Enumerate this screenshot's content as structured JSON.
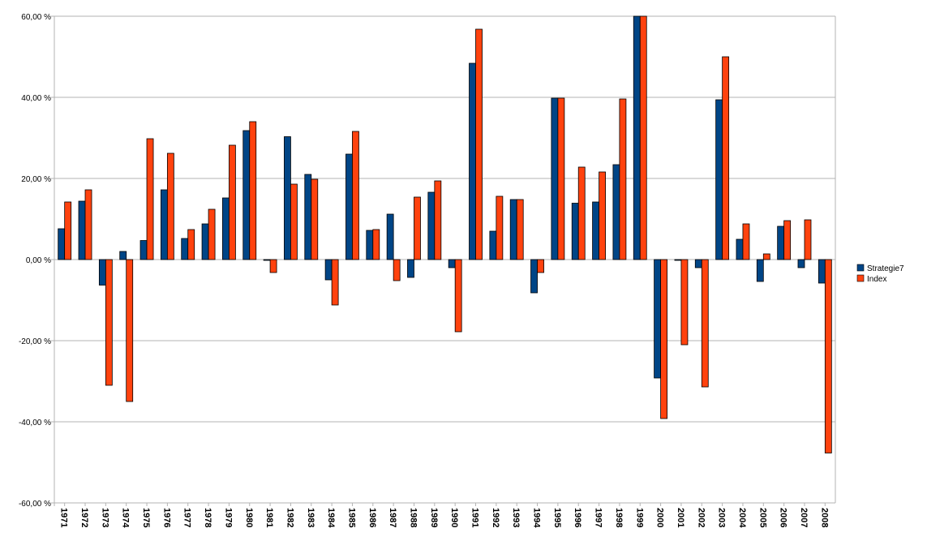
{
  "chart_data": {
    "type": "bar",
    "title": "",
    "xlabel": "",
    "ylabel": "",
    "ylim": [
      -60,
      60
    ],
    "yticks": [
      60,
      40,
      20,
      0,
      -20,
      -40,
      -60
    ],
    "ytick_labels": [
      "60,00 %",
      "40,00 %",
      "20,00 %",
      "0,00 %",
      "-20,00 %",
      "-40,00 %",
      "-60,00 %"
    ],
    "grid": true,
    "legend": "right",
    "categories": [
      "1971",
      "1972",
      "1973",
      "1974",
      "1975",
      "1976",
      "1977",
      "1978",
      "1979",
      "1980",
      "1981",
      "1982",
      "1983",
      "1984",
      "1985",
      "1986",
      "1987",
      "1988",
      "1989",
      "1990",
      "1991",
      "1992",
      "1993",
      "1994",
      "1995",
      "1996",
      "1997",
      "1998",
      "1999",
      "2000",
      "2001",
      "2002",
      "2003",
      "2004",
      "2005",
      "2006",
      "2007",
      "2008"
    ],
    "series": [
      {
        "name": "Strategie7",
        "color": "#004586",
        "values": [
          7.6,
          14.4,
          -6.3,
          2.0,
          4.7,
          17.2,
          5.2,
          8.8,
          15.2,
          31.8,
          -0.2,
          30.3,
          21.0,
          -5.0,
          26.0,
          7.2,
          11.2,
          -4.4,
          16.6,
          -2.0,
          48.4,
          7.0,
          14.8,
          -8.2,
          39.8,
          13.9,
          14.2,
          23.4,
          60.0,
          -29.2,
          0.0,
          -2.0,
          39.4,
          5.0,
          -5.4,
          8.2,
          -2.0,
          -5.8
        ]
      },
      {
        "name": "Index",
        "color": "#ff420e",
        "values": [
          14.2,
          17.2,
          -31.0,
          -35.0,
          29.8,
          26.2,
          7.4,
          12.4,
          28.2,
          34.0,
          -3.2,
          18.6,
          19.8,
          -11.2,
          31.6,
          7.4,
          -5.2,
          15.4,
          19.4,
          -17.8,
          56.8,
          15.6,
          14.8,
          -3.2,
          39.8,
          22.8,
          21.6,
          39.6,
          60.0,
          -39.2,
          -21.0,
          -31.4,
          50.0,
          8.8,
          1.4,
          9.6,
          9.8,
          -47.7
        ]
      }
    ]
  }
}
